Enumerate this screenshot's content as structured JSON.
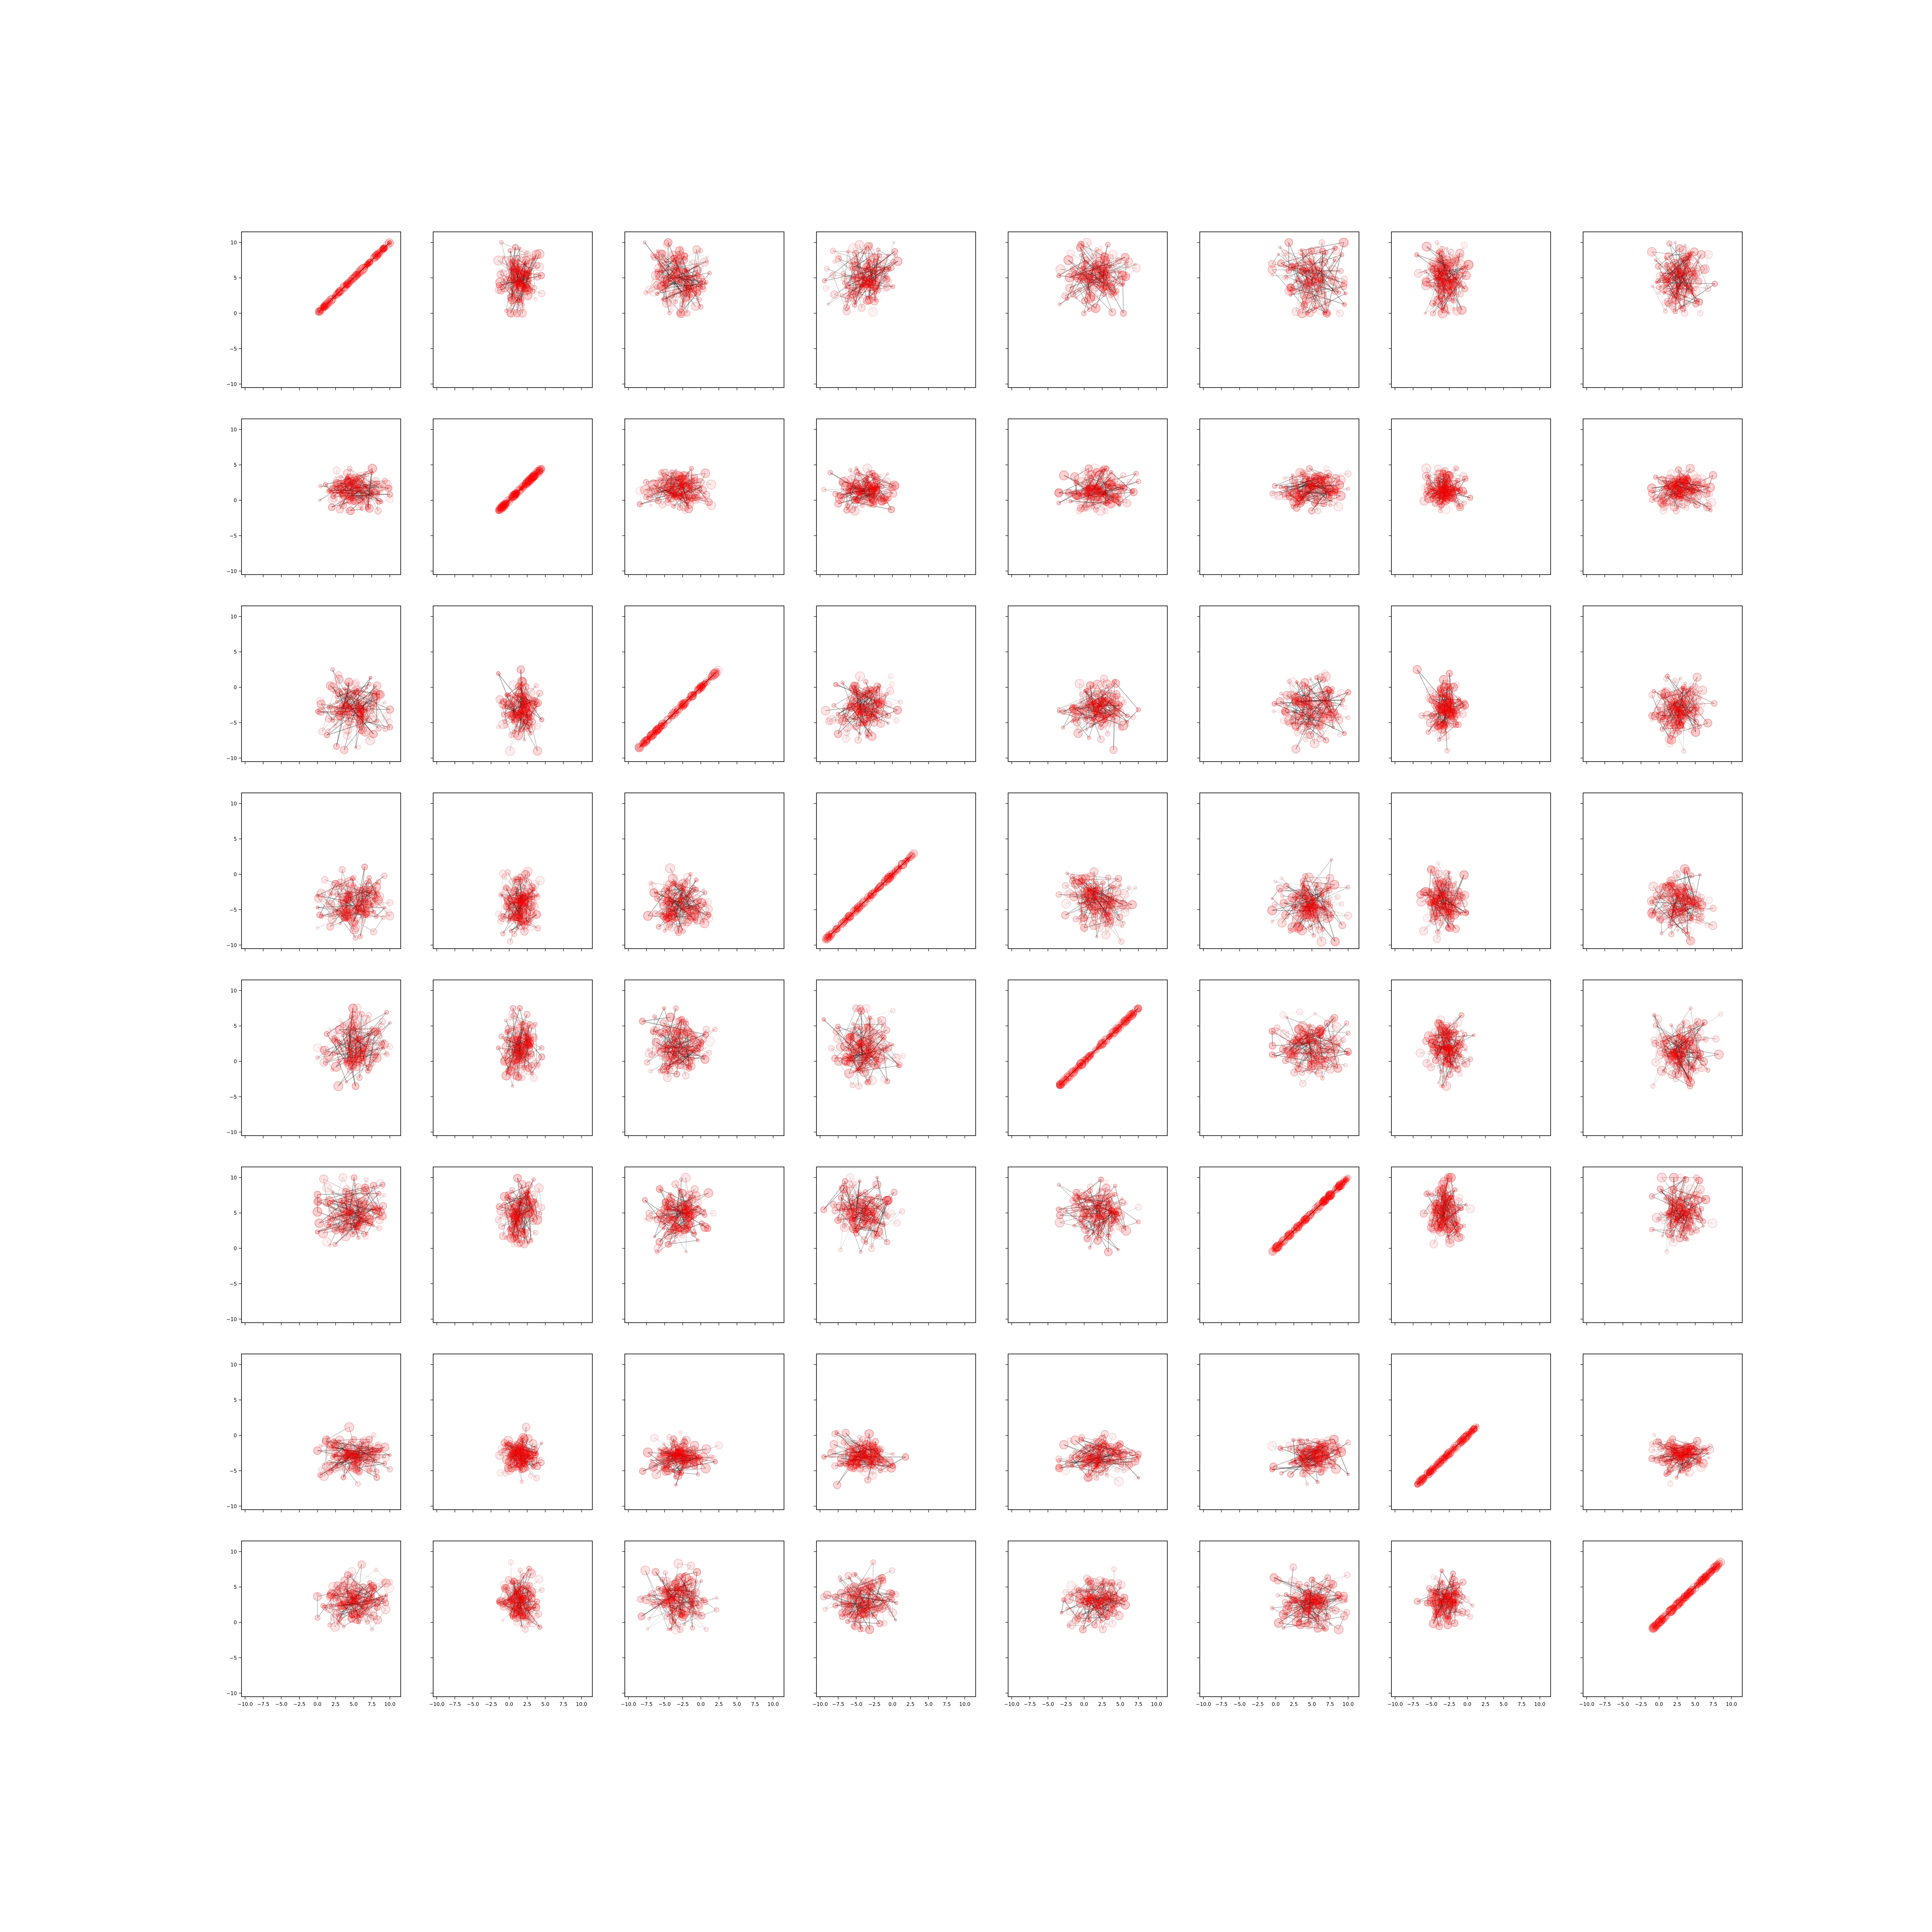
{
  "figure": {
    "layout": "8x8 scatter-plot matrix with trajectory lines",
    "shared_axes": true
  },
  "colors": {
    "marker": "#ff0000",
    "trajectory": "#000000",
    "axes": "#000000",
    "background": "#ffffff"
  },
  "chart_data": {
    "type": "scatter",
    "grid": false,
    "rows": 8,
    "cols": 8,
    "xlim": [
      -10.5,
      11.5
    ],
    "ylim": [
      -10.5,
      11.5
    ],
    "xticks": [
      -10.0,
      -7.5,
      -5.0,
      -2.5,
      0.0,
      2.5,
      5.0,
      7.5,
      10.0
    ],
    "xtick_labels": [
      "−10.0",
      "−7.5",
      "−5.0",
      "−2.5",
      "0.0",
      "2.5",
      "5.0",
      "7.5",
      "10.0"
    ],
    "yticks": [
      -10,
      -5,
      0,
      5,
      10
    ],
    "ytick_labels": [
      "−10",
      "−5",
      "0",
      "5",
      "10"
    ],
    "variables": [
      {
        "center": 5.0,
        "spread": 2.2,
        "min": 0.0,
        "max": 10.0
      },
      {
        "center": 1.5,
        "spread": 1.3,
        "min": -1.5,
        "max": 4.5
      },
      {
        "center": -3.0,
        "spread": 2.0,
        "min": -9.0,
        "max": 2.5
      },
      {
        "center": -4.0,
        "spread": 2.0,
        "min": -9.5,
        "max": 3.0
      },
      {
        "center": 2.0,
        "spread": 2.2,
        "min": -3.5,
        "max": 7.5
      },
      {
        "center": 5.0,
        "spread": 2.2,
        "min": -0.5,
        "max": 10.0
      },
      {
        "center": -3.0,
        "spread": 1.3,
        "min": -7.0,
        "max": 1.5
      },
      {
        "center": 3.0,
        "spread": 1.8,
        "min": -1.0,
        "max": 8.5
      }
    ],
    "points_per_panel": 150,
    "note": "Row i plots variable i on the y-axis against variable j on the x-axis; diagonal panels lie on the line y = x."
  }
}
